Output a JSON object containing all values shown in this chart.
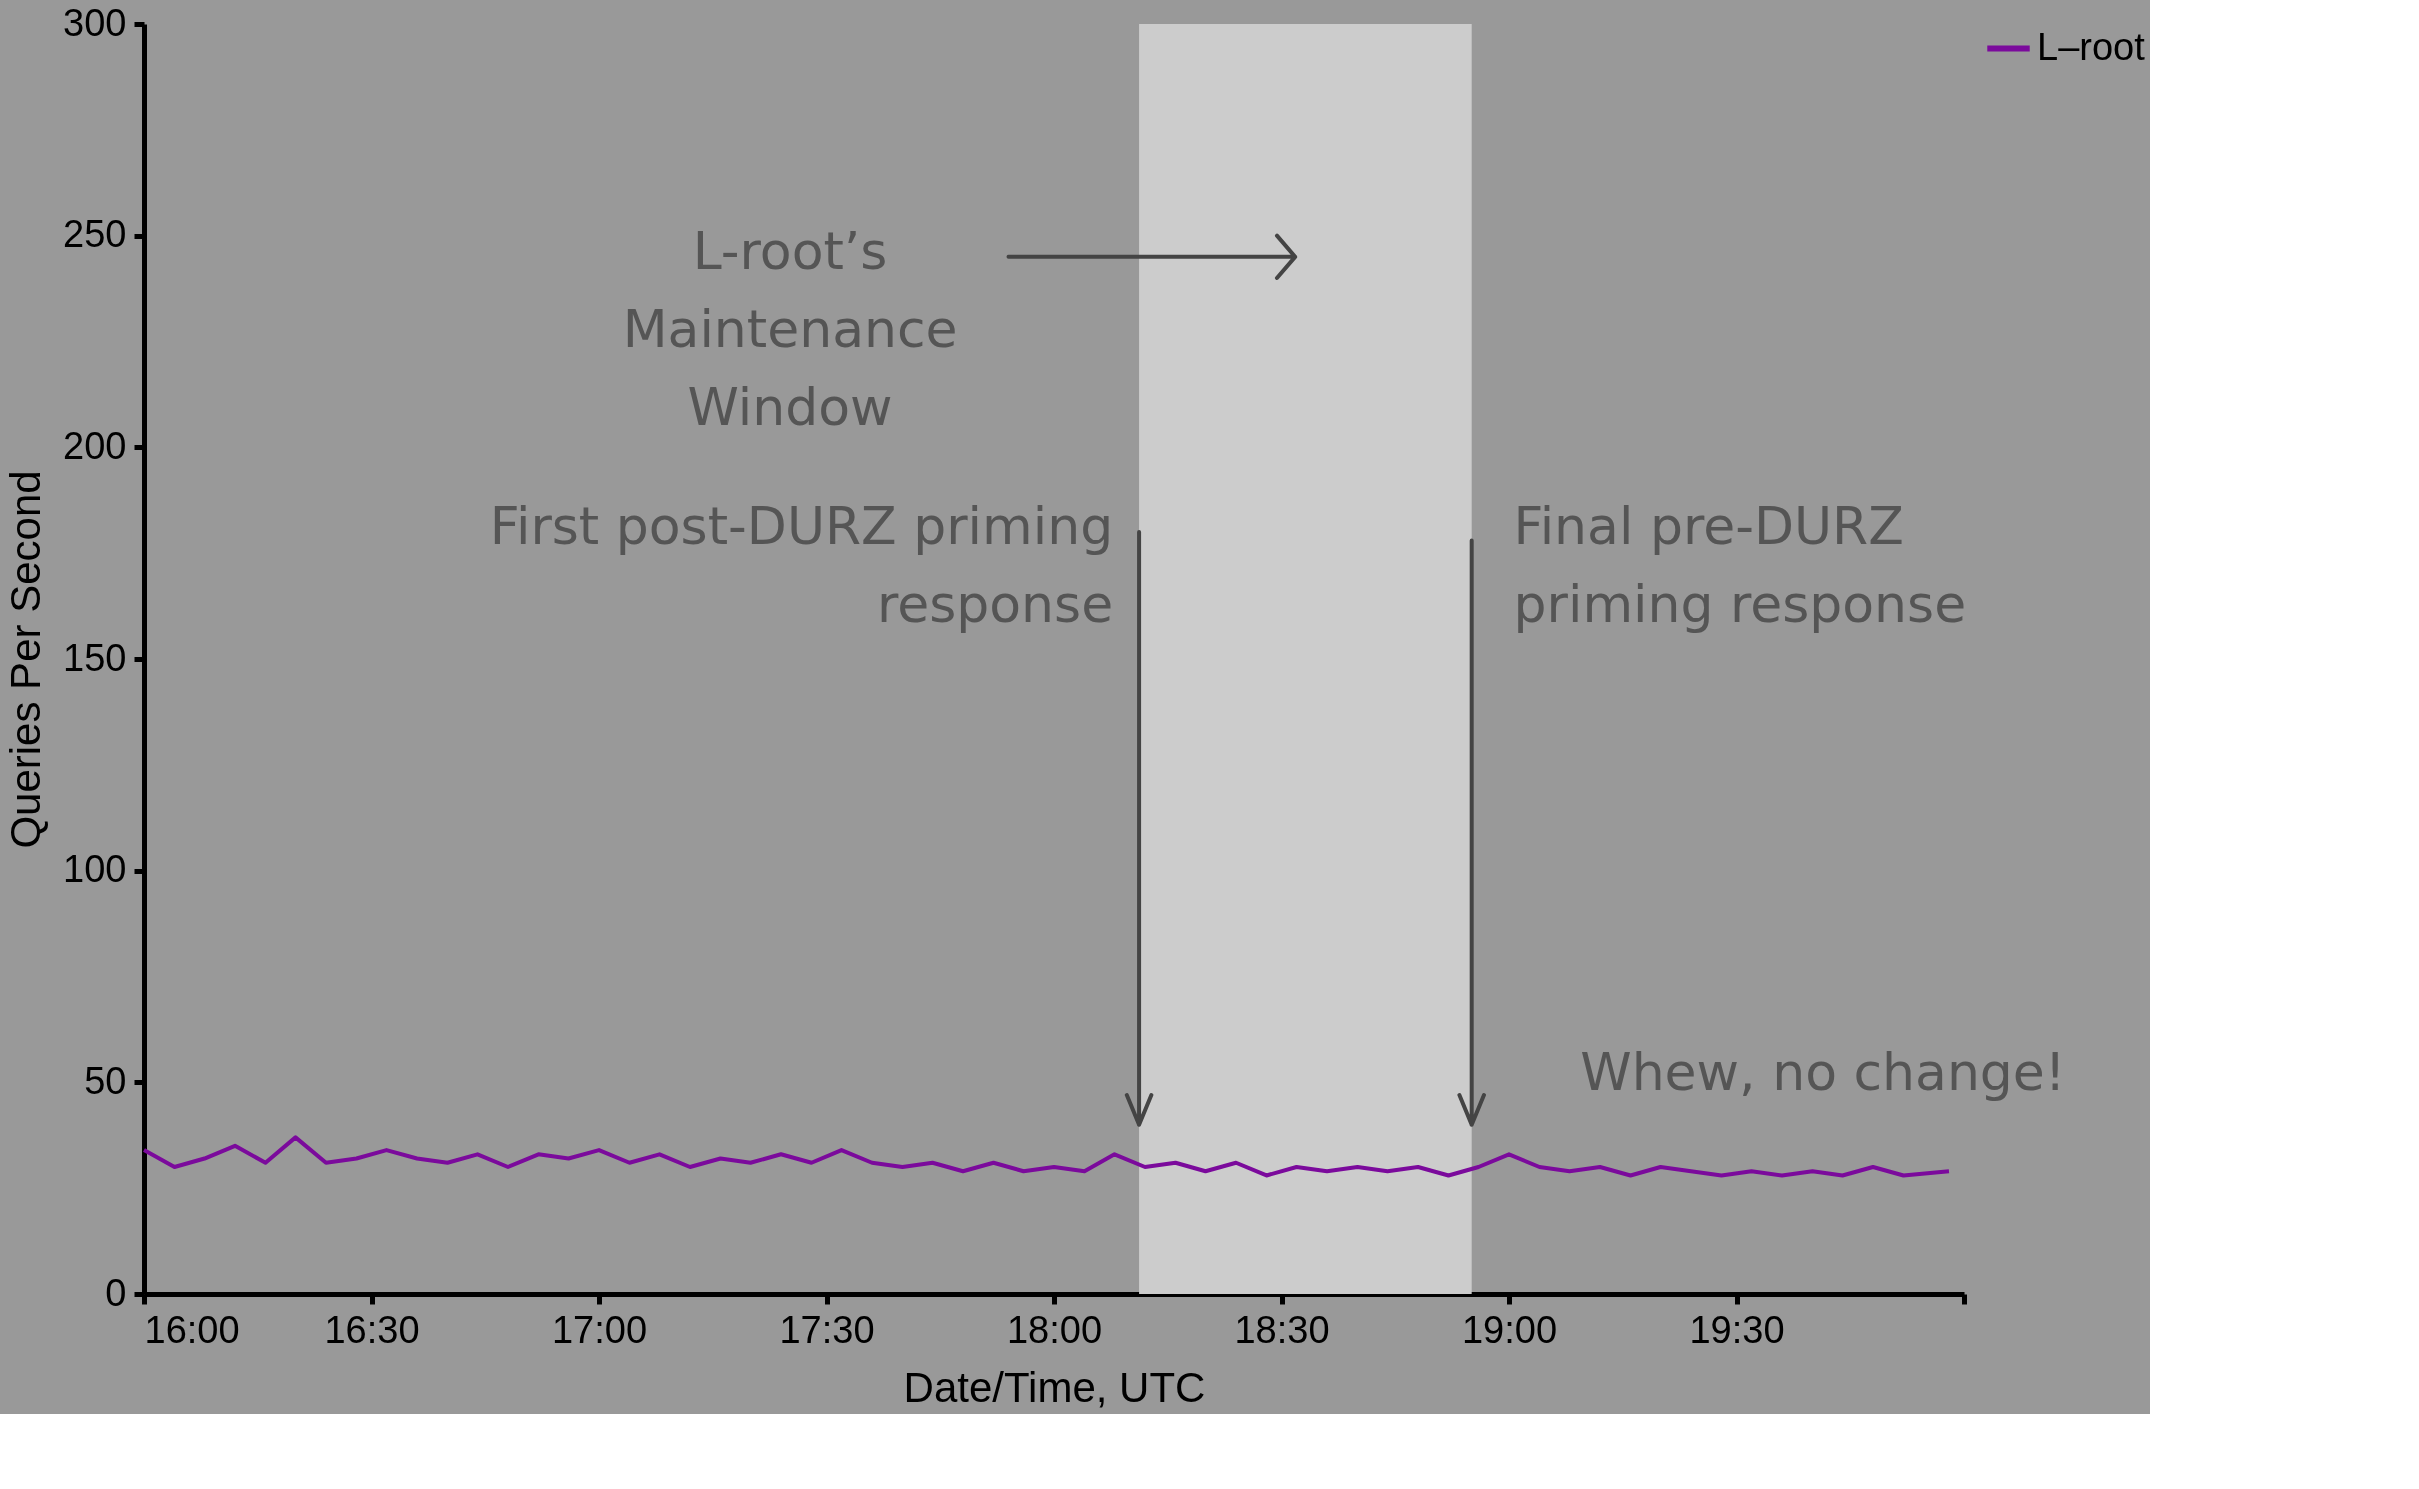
{
  "chart_data": {
    "type": "line",
    "xlabel": "Date/Time, UTC",
    "ylabel": "Queries Per Second",
    "x": [
      16.0,
      16.067,
      16.133,
      16.2,
      16.267,
      16.333,
      16.4,
      16.467,
      16.533,
      16.6,
      16.667,
      16.733,
      16.8,
      16.867,
      16.933,
      17.0,
      17.067,
      17.133,
      17.2,
      17.267,
      17.333,
      17.4,
      17.467,
      17.533,
      17.6,
      17.667,
      17.733,
      17.8,
      17.867,
      17.933,
      18.0,
      18.067,
      18.133,
      18.2,
      18.267,
      18.333,
      18.4,
      18.467,
      18.533,
      18.6,
      18.667,
      18.733,
      18.8,
      18.867,
      18.933,
      19.0,
      19.067,
      19.133,
      19.2,
      19.267,
      19.333,
      19.4,
      19.467,
      19.533,
      19.6,
      19.667,
      19.733,
      19.8,
      19.867,
      19.967
    ],
    "series": [
      {
        "name": "L–root",
        "color": "#7b0a9c",
        "values": [
          34,
          30,
          32,
          35,
          31,
          37,
          31,
          32,
          34,
          32,
          31,
          33,
          30,
          33,
          32,
          34,
          31,
          33,
          30,
          32,
          31,
          33,
          31,
          34,
          31,
          30,
          31,
          29,
          31,
          29,
          30,
          29,
          33,
          30,
          31,
          29,
          31,
          28,
          30,
          29,
          30,
          29,
          30,
          28,
          30,
          33,
          30,
          29,
          30,
          28,
          30,
          29,
          28,
          29,
          28,
          29,
          28,
          30,
          28,
          29
        ]
      }
    ],
    "xlim": [
      16,
      20
    ],
    "xticks": [
      {
        "value": 16,
        "label": "16:00"
      },
      {
        "value": 16.5,
        "label": "16:30"
      },
      {
        "value": 17,
        "label": "17:00"
      },
      {
        "value": 17.5,
        "label": "17:30"
      },
      {
        "value": 18,
        "label": "18:00"
      },
      {
        "value": 18.5,
        "label": "18:30"
      },
      {
        "value": 19,
        "label": "19:00"
      },
      {
        "value": 19.5,
        "label": "19:30"
      },
      {
        "value": 20,
        "label": null
      }
    ],
    "ylim": [
      0,
      300
    ],
    "yticks": [
      0,
      50,
      100,
      150,
      200,
      250,
      300
    ],
    "bands": [
      {
        "axis": "x",
        "from": 18.187,
        "to": 18.918,
        "color": "#cccccc"
      }
    ],
    "annotations": [
      "L-root’s Maintenance Window",
      {
        "text": "First post-DURZ priming response",
        "x": 18.187,
        "y": 40
      },
      {
        "text": "Final pre-DURZ priming response",
        "x": 18.918,
        "y": 40
      },
      "Whew, no change!"
    ],
    "legend": "top right",
    "grid": false,
    "marker": "none",
    "line_style": "solid"
  }
}
